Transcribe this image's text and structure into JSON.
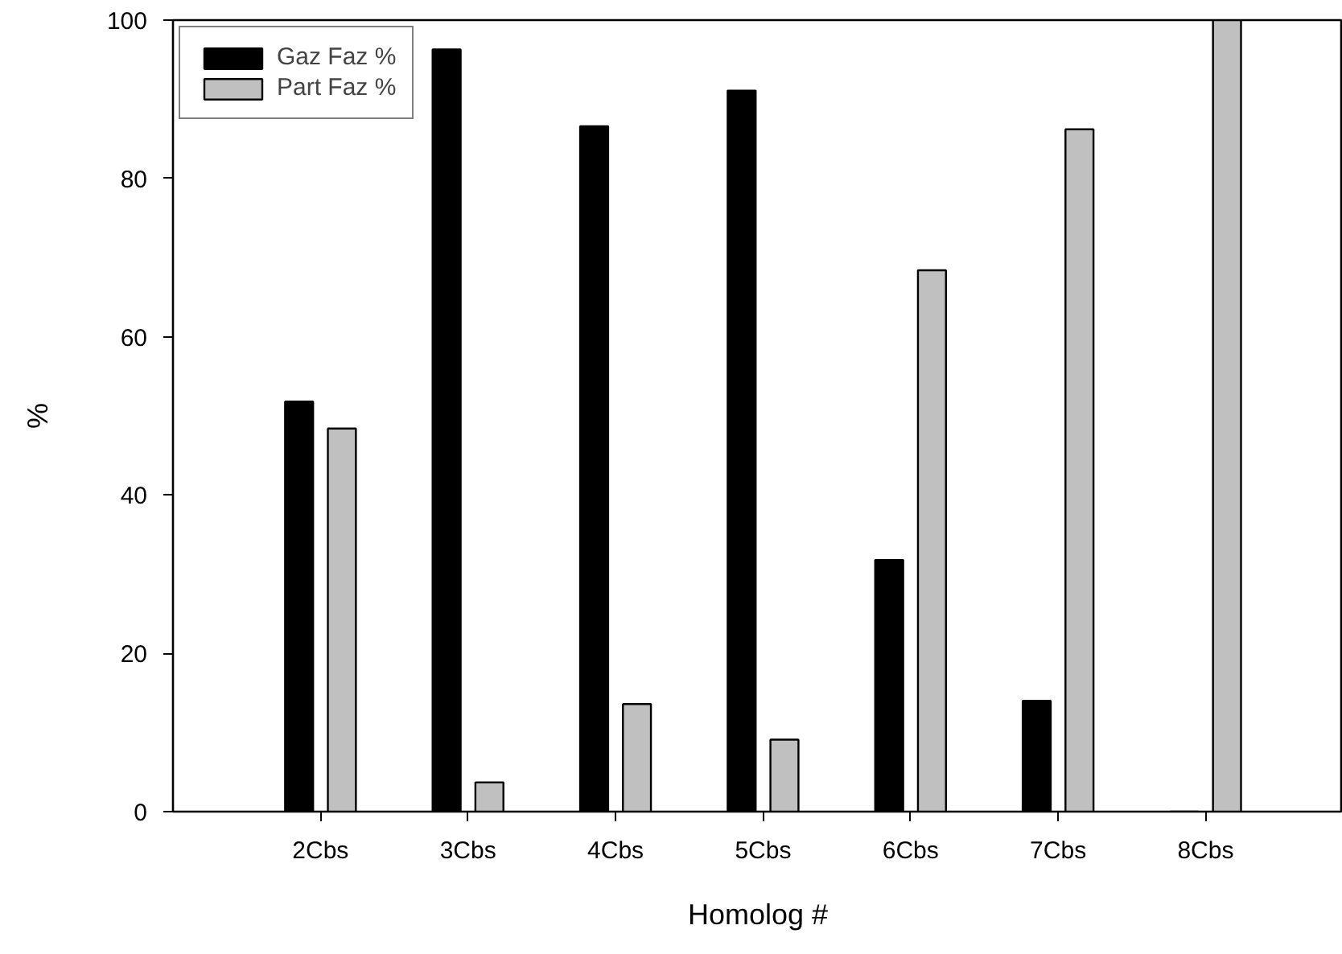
{
  "chart_data": {
    "type": "bar",
    "xlabel": "Homolog #",
    "ylabel": "%",
    "categories": [
      "2Cbs",
      "3Cbs",
      "4Cbs",
      "5Cbs",
      "6Cbs",
      "7Cbs",
      "8Cbs"
    ],
    "series": [
      {
        "name": "Gaz Faz %",
        "color": "#000000",
        "values": [
          51.8,
          96.3,
          86.6,
          91.1,
          31.8,
          14.0,
          0
        ]
      },
      {
        "name": "Part Faz %",
        "color": "#c0c0c0",
        "values": [
          48.4,
          3.7,
          13.6,
          9.1,
          68.4,
          86.2,
          100
        ]
      }
    ],
    "ylim": [
      0,
      100
    ],
    "yticks": [
      0,
      20,
      40,
      60,
      80,
      100
    ],
    "grid": false,
    "legend": "top left"
  }
}
